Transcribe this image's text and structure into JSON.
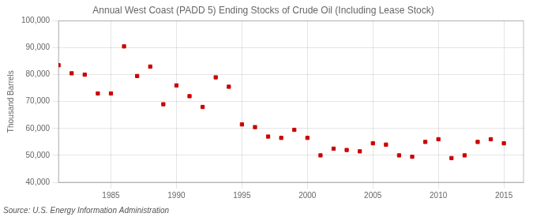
{
  "chart_data": {
    "type": "scatter",
    "title": "Annual West Coast (PADD 5) Ending Stocks of Crude Oil (Including Lease Stock)",
    "ylabel": "Thousand Barrels",
    "annotations": [
      "Source: U.S. Energy Information Administration"
    ],
    "x": [
      1981,
      1982,
      1983,
      1984,
      1985,
      1986,
      1987,
      1988,
      1989,
      1990,
      1991,
      1992,
      1993,
      1994,
      1995,
      1996,
      1997,
      1998,
      1999,
      2000,
      2001,
      2002,
      2003,
      2004,
      2005,
      2006,
      2007,
      2008,
      2009,
      2010,
      2011,
      2012,
      2013,
      2014,
      2015
    ],
    "values": [
      83500,
      80500,
      80000,
      73000,
      73000,
      90500,
      79500,
      83000,
      69000,
      76000,
      72000,
      68000,
      79000,
      75500,
      61500,
      60500,
      57000,
      56500,
      59500,
      56500,
      50000,
      52500,
      52000,
      51500,
      54500,
      54000,
      50000,
      49500,
      55000,
      56000,
      49000,
      50000,
      55000,
      56000,
      54500
    ],
    "color": "#cc0000",
    "marker": "square",
    "xlim": [
      1981.0,
      2016.5
    ],
    "xticks": [
      1985,
      1990,
      1995,
      2000,
      2005,
      2010,
      2015
    ],
    "ylim": [
      40000,
      100000
    ],
    "yticks": [
      {
        "value": 40000,
        "label": "40,000"
      },
      {
        "value": 50000,
        "label": "50,000"
      },
      {
        "value": 60000,
        "label": "60,000"
      },
      {
        "value": 70000,
        "label": "70,000"
      },
      {
        "value": 80000,
        "label": "80,000"
      },
      {
        "value": 90000,
        "label": "90,000"
      },
      {
        "value": 100000,
        "label": "100,000"
      }
    ],
    "grid": true
  }
}
